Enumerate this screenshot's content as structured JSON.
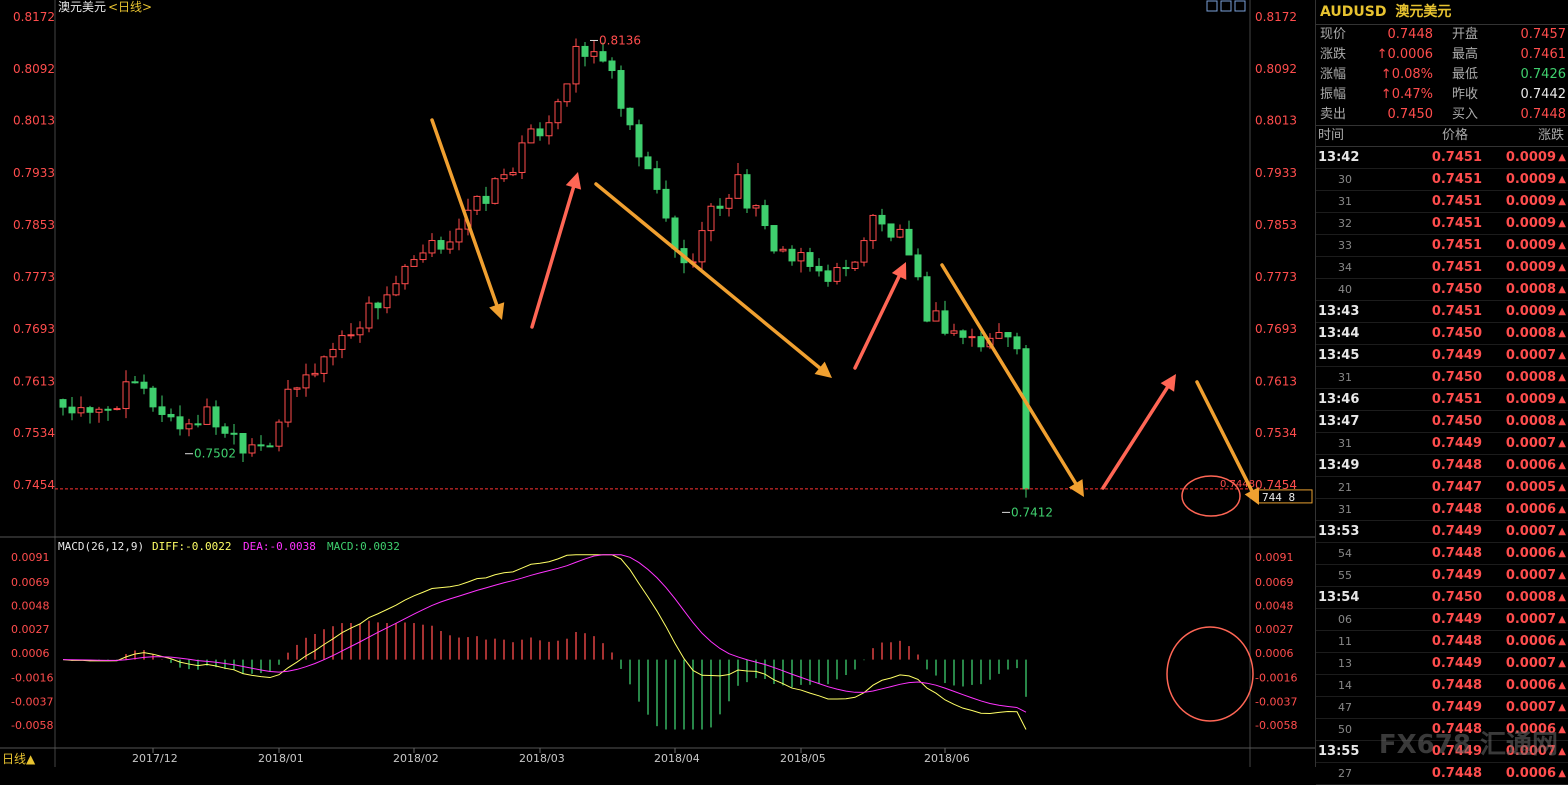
{
  "colors": {
    "up": "#ff4d4d",
    "down": "#3fcf6e",
    "axis_text": "#ff4d4d",
    "date_text": "#c8c8c8",
    "grid": "#333333",
    "orange_arrow": "#f0a030",
    "red_arrow": "#ff6655",
    "diff_line": "#ffff66",
    "dea_line": "#ff33ff",
    "circle": "#ff6655",
    "dashed_line": "#ff3333"
  },
  "header": {
    "title": "澳元美元",
    "period": "<日线>"
  },
  "bottom": {
    "period_label": "日线▲"
  },
  "watermark": "FX678 汇通网",
  "chart_data": [
    {
      "type": "candlestick",
      "ylim": [
        0.74,
        0.8172
      ],
      "y_ticks": [
        "0.8172",
        "0.8092",
        "0.8013",
        "0.7933",
        "0.7853",
        "0.7773",
        "0.7693",
        "0.7613",
        "0.7534",
        "0.7454"
      ],
      "y_tick_values": [
        0.8172,
        0.8092,
        0.8013,
        0.7933,
        0.7853,
        0.7773,
        0.7693,
        0.7613,
        0.7534,
        0.7454
      ],
      "x_ticks": [
        "2017/12",
        "2018/01",
        "2018/02",
        "2018/03",
        "2018/04",
        "2018/05",
        "2018/06"
      ],
      "x_tick_index": [
        10,
        24,
        39,
        53,
        68,
        82,
        98
      ],
      "n_bars": 108,
      "anchors": [
        [
          0,
          0.7585
        ],
        [
          4,
          0.7555
        ],
        [
          9,
          0.7605
        ],
        [
          14,
          0.7545
        ],
        [
          17,
          0.7562
        ],
        [
          21,
          0.752
        ],
        [
          24,
          0.7525
        ],
        [
          26,
          0.7585
        ],
        [
          30,
          0.765
        ],
        [
          35,
          0.7722
        ],
        [
          40,
          0.779
        ],
        [
          45,
          0.785
        ],
        [
          50,
          0.793
        ],
        [
          55,
          0.802
        ],
        [
          58,
          0.811
        ],
        [
          61,
          0.8115
        ],
        [
          64,
          0.799
        ],
        [
          67,
          0.79
        ],
        [
          70,
          0.7785
        ],
        [
          73,
          0.787
        ],
        [
          76,
          0.792
        ],
        [
          79,
          0.784
        ],
        [
          82,
          0.78
        ],
        [
          85,
          0.778
        ],
        [
          88,
          0.778
        ],
        [
          91,
          0.786
        ],
        [
          94,
          0.783
        ],
        [
          97,
          0.772
        ],
        [
          100,
          0.769
        ],
        [
          103,
          0.767
        ],
        [
          106,
          0.769
        ],
        [
          107,
          0.768
        ]
      ],
      "annotations": {
        "high": "0.8136",
        "low_left": "0.7502",
        "low_right": "0.7412",
        "last_price": "0.7448",
        "last_price_box": "744 8"
      },
      "high_value": 0.8136,
      "low_left_value": 0.7502,
      "low_right_value": 0.7412,
      "last_value": 0.7448
    },
    {
      "type": "macd",
      "label": "MACD(26,12,9)",
      "diff_text": "DIFF:-0.0022",
      "dea_text": "DEA:-0.0038",
      "macd_text": "MACD:0.0032",
      "ylim": [
        -0.0065,
        0.0095
      ],
      "y_ticks": [
        "0.0091",
        "0.0069",
        "0.0048",
        "0.0027",
        "0.0006",
        "-0.0016",
        "-0.0037",
        "-0.0058"
      ],
      "y_tick_values": [
        0.0091,
        0.0069,
        0.0048,
        0.0027,
        0.0006,
        -0.0016,
        -0.0037,
        -0.0058
      ]
    }
  ],
  "panel": {
    "symbol": "AUDUSD",
    "name": "澳元美元",
    "quote": [
      {
        "l1": "现价",
        "v1": "0.7448",
        "c1": "red",
        "l2": "开盘",
        "v2": "0.7457",
        "c2": "red"
      },
      {
        "l1": "涨跌",
        "v1": "↑0.0006",
        "c1": "red",
        "l2": "最高",
        "v2": "0.7461",
        "c2": "red"
      },
      {
        "l1": "涨幅",
        "v1": "↑0.08%",
        "c1": "red",
        "l2": "最低",
        "v2": "0.7426",
        "c2": "green"
      },
      {
        "l1": "振幅",
        "v1": "↑0.47%",
        "c1": "red",
        "l2": "昨收",
        "v2": "0.7442",
        "c2": "white"
      },
      {
        "l1": "卖出",
        "v1": "0.7450",
        "c1": "red",
        "l2": "买入",
        "v2": "0.7448",
        "c2": "red"
      }
    ],
    "table_header": {
      "time": "时间",
      "price": "价格",
      "change": "涨跌"
    },
    "ticks": [
      {
        "t": "13:42",
        "major": true,
        "p": "0.7451",
        "c": "0.0009"
      },
      {
        "t": "30",
        "p": "0.7451",
        "c": "0.0009"
      },
      {
        "t": "31",
        "p": "0.7451",
        "c": "0.0009"
      },
      {
        "t": "32",
        "p": "0.7451",
        "c": "0.0009"
      },
      {
        "t": "33",
        "p": "0.7451",
        "c": "0.0009"
      },
      {
        "t": "34",
        "p": "0.7451",
        "c": "0.0009"
      },
      {
        "t": "40",
        "p": "0.7450",
        "c": "0.0008"
      },
      {
        "t": "13:43",
        "major": true,
        "p": "0.7451",
        "c": "0.0009"
      },
      {
        "t": "13:44",
        "major": true,
        "p": "0.7450",
        "c": "0.0008"
      },
      {
        "t": "13:45",
        "major": true,
        "p": "0.7449",
        "c": "0.0007"
      },
      {
        "t": "31",
        "p": "0.7450",
        "c": "0.0008"
      },
      {
        "t": "13:46",
        "major": true,
        "p": "0.7451",
        "c": "0.0009"
      },
      {
        "t": "13:47",
        "major": true,
        "p": "0.7450",
        "c": "0.0008"
      },
      {
        "t": "31",
        "p": "0.7449",
        "c": "0.0007"
      },
      {
        "t": "13:49",
        "major": true,
        "p": "0.7448",
        "c": "0.0006"
      },
      {
        "t": "21",
        "p": "0.7447",
        "c": "0.0005"
      },
      {
        "t": "31",
        "p": "0.7448",
        "c": "0.0006"
      },
      {
        "t": "13:53",
        "major": true,
        "p": "0.7449",
        "c": "0.0007"
      },
      {
        "t": "54",
        "p": "0.7448",
        "c": "0.0006"
      },
      {
        "t": "55",
        "p": "0.7449",
        "c": "0.0007"
      },
      {
        "t": "13:54",
        "major": true,
        "p": "0.7450",
        "c": "0.0008"
      },
      {
        "t": "06",
        "p": "0.7449",
        "c": "0.0007"
      },
      {
        "t": "11",
        "p": "0.7448",
        "c": "0.0006"
      },
      {
        "t": "13",
        "p": "0.7449",
        "c": "0.0007"
      },
      {
        "t": "14",
        "p": "0.7448",
        "c": "0.0006"
      },
      {
        "t": "47",
        "p": "0.7449",
        "c": "0.0007"
      },
      {
        "t": "50",
        "p": "0.7448",
        "c": "0.0006"
      },
      {
        "t": "13:55",
        "major": true,
        "p": "0.7449",
        "c": "0.0007"
      },
      {
        "t": "27",
        "p": "0.7448",
        "c": "0.0006"
      }
    ]
  }
}
